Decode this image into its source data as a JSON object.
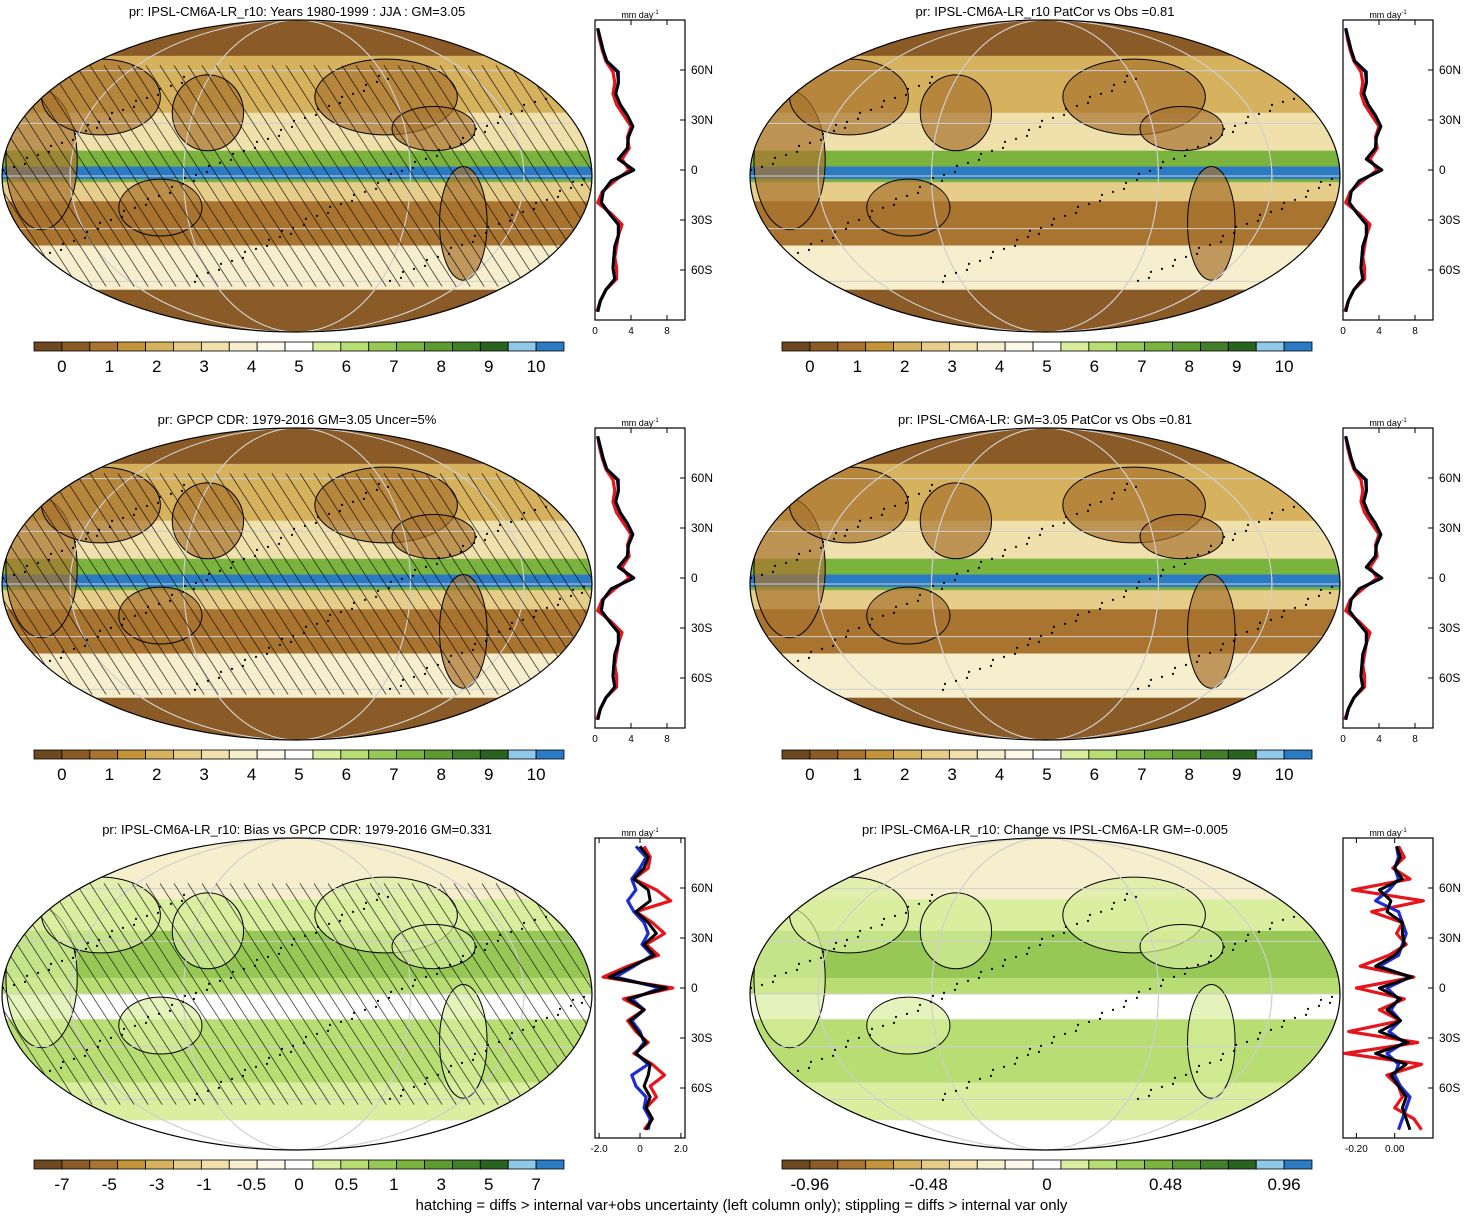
{
  "footer": "hatching = diffs > internal var+obs uncertainty (left column only); stippling = diffs > internal var only",
  "precip_colors": [
    "#6e4820",
    "#8a5a27",
    "#a8742f",
    "#c4943a",
    "#d6b25e",
    "#e6cd8a",
    "#f0e0ab",
    "#f7eecd",
    "#fdf8ea",
    "#ffffff",
    "#d9ee9e",
    "#b8dd73",
    "#97c855",
    "#7bb33f",
    "#5e9a32",
    "#417f28",
    "#2a6320",
    "#90c8ea",
    "#2b7bc4"
  ],
  "diff_colors": [
    "#6e4820",
    "#8a5a27",
    "#a8742f",
    "#c4943a",
    "#d6b25e",
    "#e6cd8a",
    "#f0e0ab",
    "#f7eecd",
    "#fdf8ea",
    "#ffffff",
    "#d9ee9e",
    "#b8dd73",
    "#97c855",
    "#7bb33f",
    "#5e9a32",
    "#417f28",
    "#2a6320",
    "#90c8ea",
    "#2b7bc4"
  ],
  "lat_labels": [
    "60N",
    "30N",
    "0",
    "30S",
    "60S"
  ],
  "zonal_unit": "mm day",
  "zonal_unit_sup": "-1",
  "chart_data": [
    {
      "type": "map",
      "title": "pr: IPSL-CM6A-LR_r10: Years 1980-1999 : JJA : GM=3.05",
      "colorbar_labels": [
        "0",
        "1",
        "2",
        "3",
        "4",
        "5",
        "6",
        "7",
        "8",
        "9",
        "10"
      ],
      "colorbar_kind": "precip",
      "zonal": {
        "xticks": [
          "0",
          "4",
          "8"
        ],
        "xmin": 0,
        "xmax": 10,
        "series": [
          {
            "color": "#e8141c",
            "values": [
              0.3,
              0.5,
              0.8,
              1.2,
              2.0,
              2.2,
              2.0,
              2.4,
              3.2,
              4.0,
              3.6,
              3.8,
              3.0,
              3.8,
              2.2,
              0.8,
              0.3,
              1.8,
              3.0,
              2.6,
              2.4,
              2.2,
              2.4,
              2.4,
              1.2,
              0.6,
              0.2
            ]
          },
          {
            "color": "#1f2bd6",
            "values": [
              0.3,
              0.6,
              0.9,
              1.3,
              2.6,
              2.6,
              2.3,
              2.8,
              3.6,
              4.2,
              3.7,
              3.6,
              2.6,
              4.3,
              1.8,
              0.9,
              0.7,
              1.6,
              2.6,
              2.6,
              2.2,
              2.1,
              2.0,
              2.2,
              1.2,
              0.6,
              0.3
            ]
          },
          {
            "color": "#000000",
            "values": [
              0.3,
              0.6,
              0.9,
              1.3,
              2.5,
              2.6,
              2.3,
              2.8,
              3.6,
              4.2,
              3.7,
              3.6,
              2.6,
              4.3,
              1.8,
              0.9,
              0.7,
              1.6,
              2.6,
              2.6,
              2.2,
              2.1,
              2.0,
              2.2,
              1.2,
              0.6,
              0.3
            ]
          }
        ]
      }
    },
    {
      "type": "map",
      "title": "pr: IPSL-CM6A-LR_r10 PatCor vs Obs =0.81",
      "colorbar_labels": [
        "0",
        "1",
        "2",
        "3",
        "4",
        "5",
        "6",
        "7",
        "8",
        "9",
        "10"
      ],
      "colorbar_kind": "precip",
      "zonal": {
        "xticks": [
          "0",
          "4",
          "8"
        ],
        "xmin": 0,
        "xmax": 10,
        "series": [
          {
            "color": "#e8141c",
            "values": [
              0.3,
              0.5,
              0.8,
              1.2,
              2.0,
              2.2,
              2.0,
              2.4,
              3.2,
              4.0,
              3.6,
              3.8,
              3.0,
              3.8,
              2.2,
              0.8,
              0.3,
              1.8,
              3.0,
              2.6,
              2.4,
              2.2,
              2.4,
              2.4,
              1.2,
              0.6,
              0.2
            ]
          },
          {
            "color": "#1f2bd6",
            "values": [
              0.3,
              0.6,
              0.9,
              1.3,
              2.6,
              2.6,
              2.3,
              2.8,
              3.6,
              4.2,
              3.7,
              3.6,
              2.6,
              4.3,
              1.8,
              0.9,
              0.7,
              1.6,
              2.6,
              2.6,
              2.2,
              2.1,
              2.0,
              2.2,
              1.2,
              0.6,
              0.3
            ]
          },
          {
            "color": "#000000",
            "values": [
              0.3,
              0.6,
              0.9,
              1.3,
              2.5,
              2.6,
              2.3,
              2.8,
              3.6,
              4.2,
              3.7,
              3.6,
              2.6,
              4.3,
              1.8,
              0.9,
              0.7,
              1.6,
              2.6,
              2.6,
              2.2,
              2.1,
              2.0,
              2.2,
              1.2,
              0.6,
              0.3
            ]
          }
        ]
      }
    },
    {
      "type": "map",
      "title": "pr: GPCP CDR: 1979-2016 GM=3.05 Uncer=5%",
      "colorbar_labels": [
        "0",
        "1",
        "2",
        "3",
        "4",
        "5",
        "6",
        "7",
        "8",
        "9",
        "10"
      ],
      "colorbar_kind": "precip",
      "zonal": {
        "xticks": [
          "0",
          "4",
          "8"
        ],
        "xmin": 0,
        "xmax": 10,
        "series": [
          {
            "color": "#e8141c",
            "values": [
              0.3,
              0.5,
              0.8,
              1.2,
              2.0,
              2.2,
              2.0,
              2.4,
              3.2,
              4.0,
              3.6,
              3.8,
              3.0,
              3.8,
              2.2,
              0.8,
              0.3,
              1.8,
              3.0,
              2.6,
              2.4,
              2.2,
              2.4,
              2.4,
              1.2,
              0.6,
              0.2
            ]
          },
          {
            "color": "#1f2bd6",
            "values": [
              0.3,
              0.6,
              0.9,
              1.3,
              2.6,
              2.6,
              2.3,
              2.8,
              3.6,
              4.2,
              3.7,
              3.6,
              2.6,
              4.3,
              1.8,
              0.9,
              0.7,
              1.6,
              2.6,
              2.6,
              2.2,
              2.1,
              2.0,
              2.2,
              1.2,
              0.6,
              0.3
            ]
          },
          {
            "color": "#000000",
            "values": [
              0.3,
              0.6,
              0.9,
              1.3,
              2.5,
              2.6,
              2.3,
              2.8,
              3.6,
              4.2,
              3.7,
              3.6,
              2.6,
              4.3,
              1.8,
              0.9,
              0.7,
              1.6,
              2.6,
              2.6,
              2.2,
              2.1,
              2.0,
              2.2,
              1.2,
              0.6,
              0.3
            ]
          }
        ]
      }
    },
    {
      "type": "map",
      "title": "pr: IPSL-CM6A-LR: GM=3.05 PatCor vs Obs =0.81",
      "colorbar_labels": [
        "0",
        "1",
        "2",
        "3",
        "4",
        "5",
        "6",
        "7",
        "8",
        "9",
        "10"
      ],
      "colorbar_kind": "precip",
      "zonal": {
        "xticks": [
          "0",
          "4",
          "8"
        ],
        "xmin": 0,
        "xmax": 10,
        "series": [
          {
            "color": "#e8141c",
            "values": [
              0.3,
              0.5,
              0.8,
              1.2,
              2.0,
              2.2,
              2.0,
              2.4,
              3.2,
              4.0,
              3.6,
              3.8,
              3.0,
              3.8,
              2.2,
              0.8,
              0.3,
              1.8,
              3.0,
              2.6,
              2.4,
              2.2,
              2.4,
              2.4,
              1.2,
              0.6,
              0.2
            ]
          },
          {
            "color": "#1f2bd6",
            "values": [
              0.3,
              0.6,
              0.9,
              1.3,
              2.6,
              2.6,
              2.3,
              2.8,
              3.6,
              4.2,
              3.7,
              3.6,
              2.6,
              4.3,
              1.8,
              0.9,
              0.7,
              1.6,
              2.6,
              2.6,
              2.2,
              2.1,
              2.0,
              2.2,
              1.2,
              0.6,
              0.3
            ]
          },
          {
            "color": "#000000",
            "values": [
              0.3,
              0.6,
              0.9,
              1.3,
              2.5,
              2.6,
              2.3,
              2.8,
              3.6,
              4.2,
              3.7,
              3.6,
              2.6,
              4.3,
              1.8,
              0.9,
              0.7,
              1.6,
              2.6,
              2.6,
              2.2,
              2.1,
              2.0,
              2.2,
              1.2,
              0.6,
              0.3
            ]
          }
        ]
      }
    },
    {
      "type": "map",
      "title": "pr: IPSL-CM6A-LR_r10: Bias vs GPCP CDR: 1979-2016 GM=0.331",
      "colorbar_labels": [
        "-7",
        "-5",
        "-3",
        "-1",
        "-0.5",
        "0",
        "0.5",
        "1",
        "3",
        "5",
        "7"
      ],
      "colorbar_kind": "diff",
      "zonal": {
        "xticks": [
          "-2.0",
          "0",
          "2.0"
        ],
        "xmin": -2.2,
        "xmax": 2.2,
        "series": [
          {
            "color": "#e8141c",
            "values": [
              0.2,
              0.5,
              0.4,
              -0.3,
              0.8,
              1.5,
              -0.2,
              0.6,
              1.2,
              0.3,
              0.9,
              -0.6,
              -1.8,
              1.6,
              -0.8,
              0.2,
              -0.6,
              -0.2,
              0.4,
              -0.3,
              0.6,
              1.2,
              0.5,
              0.8,
              0.3,
              0.6,
              0.2
            ]
          },
          {
            "color": "#1f2bd6",
            "values": [
              -0.2,
              0.3,
              0.0,
              -0.4,
              -0.2,
              -0.6,
              -0.3,
              0.2,
              0.4,
              0.1,
              0.6,
              -0.3,
              -1.2,
              1.0,
              -0.4,
              0.2,
              -0.4,
              0.0,
              0.2,
              -0.2,
              0.4,
              -0.4,
              -0.2,
              0.3,
              0.2,
              0.5,
              0.4
            ]
          },
          {
            "color": "#000000",
            "values": [
              0.0,
              0.4,
              0.2,
              -0.3,
              0.4,
              0.5,
              -0.2,
              0.4,
              0.8,
              0.2,
              0.7,
              -0.4,
              -1.5,
              1.3,
              -0.6,
              0.2,
              -0.5,
              -0.1,
              0.3,
              -0.2,
              0.5,
              0.4,
              0.2,
              0.5,
              0.3,
              0.6,
              0.3
            ]
          }
        ]
      }
    },
    {
      "type": "map",
      "title": "pr: IPSL-CM6A-LR_r10: Change vs IPSL-CM6A-LR GM=-0.005",
      "colorbar_labels": [
        "-0.96",
        "-0.48",
        "0",
        "0.48",
        "0.96"
      ],
      "colorbar_kind": "diff",
      "zonal": {
        "xticks": [
          "-0.20",
          "0.00"
        ],
        "xmin": -0.27,
        "xmax": 0.2,
        "series": [
          {
            "color": "#e8141c",
            "values": [
              0.02,
              0.05,
              -0.01,
              0.08,
              -0.22,
              0.15,
              -0.12,
              0.04,
              0.01,
              0.06,
              -0.03,
              -0.18,
              0.1,
              -0.2,
              0.05,
              -0.08,
              0.03,
              -0.24,
              0.12,
              -0.26,
              0.14,
              -0.04,
              0.02,
              0.04,
              0.0,
              0.1,
              0.14
            ]
          },
          {
            "color": "#1f2bd6",
            "values": [
              0.01,
              0.02,
              0.0,
              0.02,
              -0.03,
              -0.1,
              0.02,
              0.04,
              0.06,
              0.04,
              0.02,
              -0.08,
              0.08,
              -0.04,
              0.02,
              -0.02,
              0.03,
              -0.03,
              0.05,
              -0.04,
              0.02,
              0.0,
              0.03,
              0.08,
              0.06,
              0.04,
              0.02
            ]
          },
          {
            "color": "#000000",
            "values": [
              0.01,
              0.03,
              0.0,
              0.04,
              -0.08,
              -0.02,
              -0.04,
              0.04,
              0.04,
              0.05,
              0.0,
              -0.1,
              0.09,
              -0.08,
              0.03,
              -0.04,
              0.03,
              -0.08,
              0.07,
              -0.1,
              0.06,
              -0.02,
              0.02,
              0.06,
              0.04,
              0.06,
              0.08
            ]
          }
        ]
      }
    }
  ]
}
